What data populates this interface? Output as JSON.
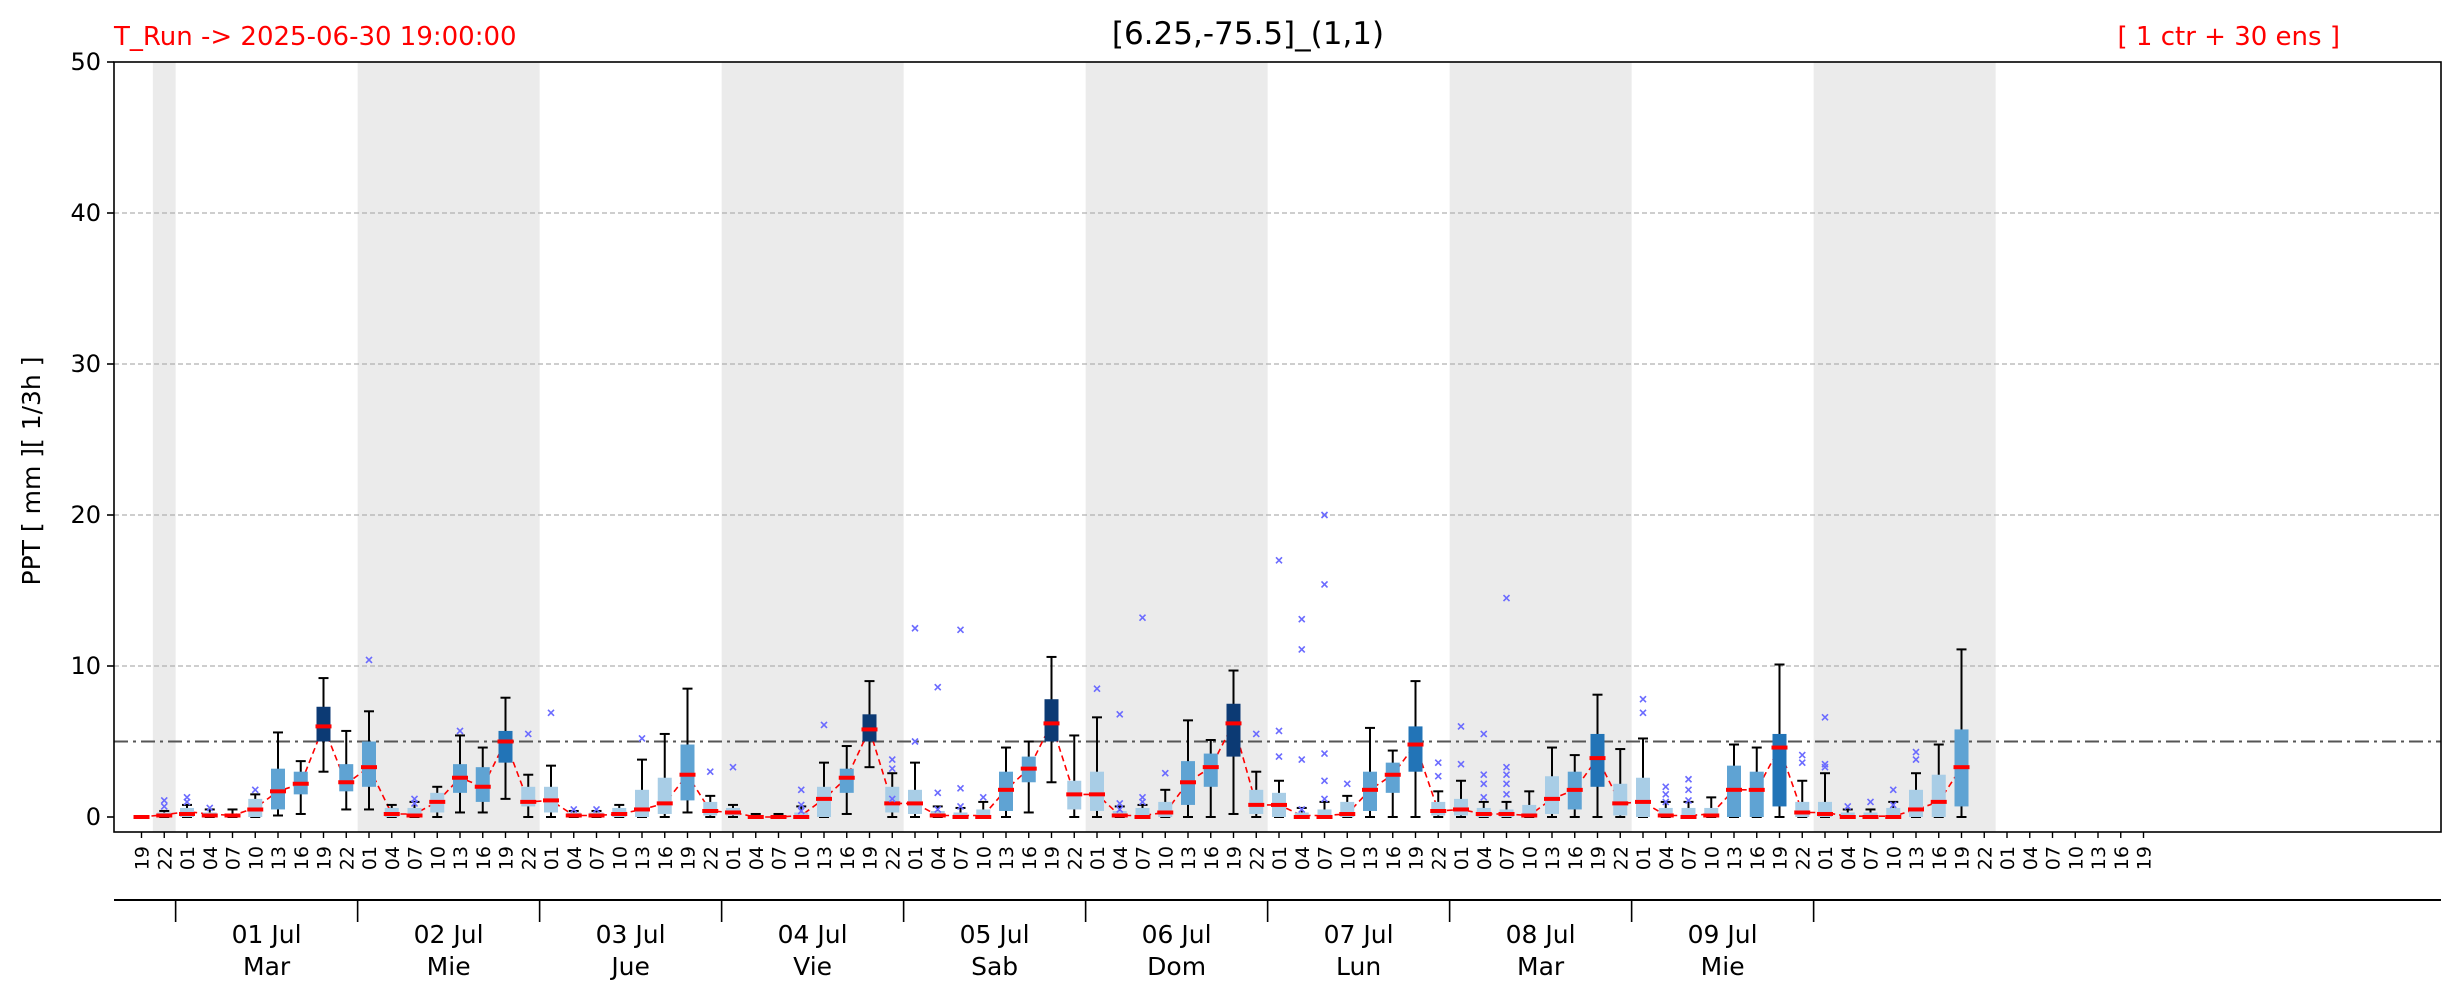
{
  "header": {
    "run_label": "T_Run -> 2025-06-30  19:00:00",
    "title": "[6.25,-75.5]_(1,1)",
    "members_label": "[ 1 ctr + 30 ens ]"
  },
  "colors": {
    "header_text": "#ff0000",
    "median": "#ff0000",
    "mean_line": "#ff0000",
    "outlier": "#6b6bff",
    "night_band": "#ebebeb",
    "box_light": "#a8cde6",
    "box_mid": "#5fa3d3",
    "box_medium_dark": "#2274b7",
    "box_dark": "#0c3a74"
  },
  "chart_data": {
    "type": "box",
    "ylabel": "PPT  [ mm ][ 1/3h ]",
    "ylim": [
      0,
      50
    ],
    "yticks": [
      0,
      10,
      20,
      30,
      40,
      50
    ],
    "grid": true,
    "threshold": 5,
    "x_hour_labels": [
      "19",
      "22",
      "01",
      "04",
      "07",
      "10",
      "13",
      "16",
      "19",
      "22",
      "01",
      "04",
      "07",
      "10",
      "13",
      "16",
      "19",
      "22",
      "01",
      "04",
      "07",
      "10",
      "13",
      "16",
      "19",
      "22",
      "01",
      "04",
      "07",
      "10",
      "13",
      "16",
      "19",
      "22",
      "01",
      "04",
      "07",
      "10",
      "13",
      "16",
      "19",
      "22",
      "01",
      "04",
      "07",
      "10",
      "13",
      "16",
      "19",
      "22",
      "01",
      "04",
      "07",
      "10",
      "13",
      "16",
      "19",
      "22",
      "01",
      "04",
      "07",
      "10",
      "13",
      "16",
      "19",
      "22",
      "01",
      "04",
      "07",
      "10",
      "13",
      "16",
      "19",
      "22",
      "01",
      "04",
      "07",
      "10",
      "13",
      "16",
      "19",
      "22",
      "01",
      "04",
      "07",
      "10",
      "13",
      "16",
      "19"
    ],
    "day_labels": [
      {
        "date": "01 Jul",
        "dow": "Mar",
        "start": 2
      },
      {
        "date": "02 Jul",
        "dow": "Mie",
        "start": 10
      },
      {
        "date": "03 Jul",
        "dow": "Jue",
        "start": 18
      },
      {
        "date": "04 Jul",
        "dow": "Vie",
        "start": 26
      },
      {
        "date": "05 Jul",
        "dow": "Sab",
        "start": 34
      },
      {
        "date": "06 Jul",
        "dow": "Dom",
        "start": 42
      },
      {
        "date": "07 Jul",
        "dow": "Lun",
        "start": 50
      },
      {
        "date": "08 Jul",
        "dow": "Mar",
        "start": 58
      },
      {
        "date": "09 Jul",
        "dow": "Mie",
        "start": 66
      }
    ],
    "night_spans": [
      [
        1,
        2
      ],
      [
        10,
        18
      ],
      [
        26,
        34
      ],
      [
        42,
        50
      ],
      [
        58,
        66
      ],
      [
        74,
        82
      ]
    ],
    "boxes": [
      {
        "q1": 0,
        "q3": 0,
        "low": 0,
        "high": 0,
        "med": 0,
        "mean": 0,
        "out": [],
        "shade": 0
      },
      {
        "q1": 0,
        "q3": 0.3,
        "low": 0,
        "high": 0.4,
        "med": 0.1,
        "mean": 0.15,
        "out": [
          0.7,
          1.1
        ],
        "shade": 0
      },
      {
        "q1": 0,
        "q3": 0.6,
        "low": 0,
        "high": 0.8,
        "med": 0.2,
        "mean": 0.35,
        "out": [
          1.0,
          1.3
        ],
        "shade": 0
      },
      {
        "q1": 0,
        "q3": 0.3,
        "low": 0,
        "high": 0.5,
        "med": 0.1,
        "mean": 0.2,
        "out": [
          0.6
        ],
        "shade": 0
      },
      {
        "q1": 0,
        "q3": 0.2,
        "low": 0,
        "high": 0.5,
        "med": 0.1,
        "mean": 0.1,
        "out": [],
        "shade": 0
      },
      {
        "q1": 0,
        "q3": 1.2,
        "low": 0,
        "high": 1.5,
        "med": 0.5,
        "mean": 0.6,
        "out": [
          1.8
        ],
        "shade": 0
      },
      {
        "q1": 0.5,
        "q3": 3.2,
        "low": 0.1,
        "high": 5.6,
        "med": 1.7,
        "mean": 1.7,
        "out": [],
        "shade": 1
      },
      {
        "q1": 1.5,
        "q3": 3.0,
        "low": 0.2,
        "high": 3.7,
        "med": 2.2,
        "mean": 2.2,
        "out": [],
        "shade": 1
      },
      {
        "q1": 5.0,
        "q3": 7.3,
        "low": 3.0,
        "high": 9.2,
        "med": 6.0,
        "mean": 6.0,
        "out": [],
        "shade": 4
      },
      {
        "q1": 1.7,
        "q3": 3.5,
        "low": 0.5,
        "high": 5.7,
        "med": 2.3,
        "mean": 2.2,
        "out": [],
        "shade": 1
      },
      {
        "q1": 2.0,
        "q3": 5.0,
        "low": 0.5,
        "high": 7.0,
        "med": 3.3,
        "mean": 3.3,
        "out": [
          10.4
        ],
        "shade": 2
      },
      {
        "q1": 0,
        "q3": 0.6,
        "low": 0,
        "high": 0.8,
        "med": 0.2,
        "mean": 0.2,
        "out": [],
        "shade": 0
      },
      {
        "q1": 0,
        "q3": 0.6,
        "low": 0,
        "high": 1.0,
        "med": 0.1,
        "mean": 0.2,
        "out": [
          0.9,
          1.2
        ],
        "shade": 0
      },
      {
        "q1": 0.3,
        "q3": 1.6,
        "low": 0,
        "high": 2.0,
        "med": 1.0,
        "mean": 1.0,
        "out": [],
        "shade": 0
      },
      {
        "q1": 1.6,
        "q3": 3.5,
        "low": 0.3,
        "high": 5.4,
        "med": 2.6,
        "mean": 2.6,
        "out": [
          5.7
        ],
        "shade": 1
      },
      {
        "q1": 1.0,
        "q3": 3.3,
        "low": 0.3,
        "high": 4.6,
        "med": 2.0,
        "mean": 2.0,
        "out": [],
        "shade": 1
      },
      {
        "q1": 3.6,
        "q3": 5.7,
        "low": 1.2,
        "high": 7.9,
        "med": 5.0,
        "mean": 5.0,
        "out": [],
        "shade": 3
      },
      {
        "q1": 0.7,
        "q3": 2.0,
        "low": 0,
        "high": 2.8,
        "med": 1.0,
        "mean": 1.0,
        "out": [
          5.5
        ],
        "shade": 0
      },
      {
        "q1": 0.3,
        "q3": 2.0,
        "low": 0,
        "high": 3.4,
        "med": 1.1,
        "mean": 1.1,
        "out": [
          6.9
        ],
        "shade": 0
      },
      {
        "q1": 0,
        "q3": 0.3,
        "low": 0,
        "high": 0.4,
        "med": 0.1,
        "mean": 0.1,
        "out": [
          0.5
        ],
        "shade": 0
      },
      {
        "q1": 0,
        "q3": 0.3,
        "low": 0,
        "high": 0.4,
        "med": 0.1,
        "mean": 0.1,
        "out": [
          0.5
        ],
        "shade": 0
      },
      {
        "q1": 0,
        "q3": 0.6,
        "low": 0,
        "high": 0.8,
        "med": 0.2,
        "mean": 0.2,
        "out": [],
        "shade": 0
      },
      {
        "q1": 0,
        "q3": 1.8,
        "low": 0,
        "high": 3.8,
        "med": 0.5,
        "mean": 0.5,
        "out": [
          5.2
        ],
        "shade": 0
      },
      {
        "q1": 0.2,
        "q3": 2.6,
        "low": 0,
        "high": 5.5,
        "med": 0.9,
        "mean": 0.9,
        "out": [],
        "shade": 0
      },
      {
        "q1": 1.1,
        "q3": 4.8,
        "low": 0.3,
        "high": 8.5,
        "med": 2.8,
        "mean": 2.8,
        "out": [],
        "shade": 1
      },
      {
        "q1": 0.1,
        "q3": 1.0,
        "low": 0,
        "high": 1.4,
        "med": 0.4,
        "mean": 0.4,
        "out": [
          3.0
        ],
        "shade": 0
      },
      {
        "q1": 0.1,
        "q3": 0.6,
        "low": 0,
        "high": 0.8,
        "med": 0.3,
        "mean": 0.3,
        "out": [
          3.3
        ],
        "shade": 0
      },
      {
        "q1": 0,
        "q3": 0.1,
        "low": 0,
        "high": 0.2,
        "med": 0,
        "mean": 0,
        "out": [],
        "shade": 0
      },
      {
        "q1": 0,
        "q3": 0.1,
        "low": 0,
        "high": 0.2,
        "med": 0,
        "mean": 0,
        "out": [],
        "shade": 0
      },
      {
        "q1": 0,
        "q3": 0.3,
        "low": 0,
        "high": 0.7,
        "med": 0,
        "mean": 0.1,
        "out": [
          0.4,
          0.8,
          1.8
        ],
        "shade": 0
      },
      {
        "q1": 0,
        "q3": 2.0,
        "low": 0,
        "high": 3.6,
        "med": 1.2,
        "mean": 1.2,
        "out": [
          6.1
        ],
        "shade": 0
      },
      {
        "q1": 1.6,
        "q3": 3.2,
        "low": 0.2,
        "high": 4.7,
        "med": 2.6,
        "mean": 2.6,
        "out": [],
        "shade": 1
      },
      {
        "q1": 5.0,
        "q3": 6.8,
        "low": 3.3,
        "high": 9.0,
        "med": 5.8,
        "mean": 5.8,
        "out": [],
        "shade": 4
      },
      {
        "q1": 0.3,
        "q3": 2.0,
        "low": 0,
        "high": 2.9,
        "med": 0.9,
        "mean": 0.9,
        "out": [
          1.2,
          3.2,
          3.8
        ],
        "shade": 0
      },
      {
        "q1": 0.2,
        "q3": 1.8,
        "low": 0,
        "high": 3.6,
        "med": 0.9,
        "mean": 0.9,
        "out": [
          12.5,
          5.0
        ],
        "shade": 0
      },
      {
        "q1": 0,
        "q3": 0.4,
        "low": 0,
        "high": 0.7,
        "med": 0.1,
        "mean": 0.1,
        "out": [
          8.6,
          1.6,
          0.5
        ],
        "shade": 0
      },
      {
        "q1": 0,
        "q3": 0.3,
        "low": 0,
        "high": 0.6,
        "med": 0,
        "mean": 0.1,
        "out": [
          12.4,
          1.9,
          0.7
        ],
        "shade": 0
      },
      {
        "q1": 0,
        "q3": 0.5,
        "low": 0,
        "high": 1.0,
        "med": 0,
        "mean": 0.1,
        "out": [
          1.3
        ],
        "shade": 0
      },
      {
        "q1": 0.4,
        "q3": 3.0,
        "low": 0,
        "high": 4.6,
        "med": 1.8,
        "mean": 1.8,
        "out": [],
        "shade": 1
      },
      {
        "q1": 2.3,
        "q3": 4.0,
        "low": 0.3,
        "high": 5.0,
        "med": 3.2,
        "mean": 3.2,
        "out": [],
        "shade": 2
      },
      {
        "q1": 5.0,
        "q3": 7.8,
        "low": 2.3,
        "high": 10.6,
        "med": 6.2,
        "mean": 6.2,
        "out": [],
        "shade": 4
      },
      {
        "q1": 0.5,
        "q3": 2.4,
        "low": 0,
        "high": 5.4,
        "med": 1.5,
        "mean": 1.5,
        "out": [],
        "shade": 0
      },
      {
        "q1": 0.4,
        "q3": 3.0,
        "low": 0,
        "high": 6.6,
        "med": 1.5,
        "mean": 1.5,
        "out": [
          8.5
        ],
        "shade": 0
      },
      {
        "q1": 0,
        "q3": 0.4,
        "low": 0,
        "high": 0.7,
        "med": 0.1,
        "mean": 0.1,
        "out": [
          6.8,
          0.9,
          0.5
        ],
        "shade": 0
      },
      {
        "q1": 0,
        "q3": 0.6,
        "low": 0,
        "high": 0.8,
        "med": 0,
        "mean": 0.1,
        "out": [
          13.2,
          1.3,
          1.0
        ],
        "shade": 0
      },
      {
        "q1": 0,
        "q3": 1.0,
        "low": 0,
        "high": 1.8,
        "med": 0.3,
        "mean": 0.3,
        "out": [
          2.9
        ],
        "shade": 0
      },
      {
        "q1": 0.8,
        "q3": 3.7,
        "low": 0,
        "high": 6.4,
        "med": 2.3,
        "mean": 2.3,
        "out": [],
        "shade": 1
      },
      {
        "q1": 2.0,
        "q3": 4.2,
        "low": 0,
        "high": 5.1,
        "med": 3.3,
        "mean": 3.3,
        "out": [],
        "shade": 2
      },
      {
        "q1": 4.0,
        "q3": 7.5,
        "low": 0.2,
        "high": 9.7,
        "med": 6.2,
        "mean": 6.2,
        "out": [],
        "shade": 4
      },
      {
        "q1": 0.2,
        "q3": 1.8,
        "low": 0,
        "high": 3.0,
        "med": 0.8,
        "mean": 0.8,
        "out": [
          5.5
        ],
        "shade": 0
      },
      {
        "q1": 0,
        "q3": 1.6,
        "low": 0,
        "high": 2.4,
        "med": 0.8,
        "mean": 0.8,
        "out": [
          17.0,
          5.7,
          4.0
        ],
        "shade": 0
      },
      {
        "q1": 0,
        "q3": 0.3,
        "low": 0,
        "high": 0.6,
        "med": 0,
        "mean": 0.1,
        "out": [
          13.1,
          11.1,
          3.8,
          0.5
        ],
        "shade": 0
      },
      {
        "q1": 0,
        "q3": 0.5,
        "low": 0,
        "high": 1.0,
        "med": 0,
        "mean": 0.1,
        "out": [
          20.0,
          15.4,
          4.2,
          2.4,
          1.2
        ],
        "shade": 0
      },
      {
        "q1": 0,
        "q3": 1.0,
        "low": 0,
        "high": 1.4,
        "med": 0.2,
        "mean": 0.2,
        "out": [
          2.2
        ],
        "shade": 0
      },
      {
        "q1": 0.4,
        "q3": 3.0,
        "low": 0,
        "high": 5.9,
        "med": 1.8,
        "mean": 1.8,
        "out": [],
        "shade": 1
      },
      {
        "q1": 1.6,
        "q3": 3.6,
        "low": 0,
        "high": 4.4,
        "med": 2.8,
        "mean": 2.8,
        "out": [],
        "shade": 2
      },
      {
        "q1": 3.0,
        "q3": 6.0,
        "low": 0,
        "high": 9.0,
        "med": 4.8,
        "mean": 4.8,
        "out": [],
        "shade": 3
      },
      {
        "q1": 0.1,
        "q3": 1.0,
        "low": 0,
        "high": 1.7,
        "med": 0.4,
        "mean": 0.4,
        "out": [
          3.6,
          2.7
        ],
        "shade": 0
      },
      {
        "q1": 0.1,
        "q3": 1.2,
        "low": 0,
        "high": 2.4,
        "med": 0.5,
        "mean": 0.5,
        "out": [
          6.0,
          3.5
        ],
        "shade": 0
      },
      {
        "q1": 0,
        "q3": 0.6,
        "low": 0,
        "high": 1.0,
        "med": 0.2,
        "mean": 0.2,
        "out": [
          5.5,
          2.8,
          2.2,
          1.3
        ],
        "shade": 0
      },
      {
        "q1": 0,
        "q3": 0.5,
        "low": 0,
        "high": 1.0,
        "med": 0.2,
        "mean": 0.2,
        "out": [
          14.5,
          3.3,
          2.8,
          2.2,
          1.5
        ],
        "shade": 0
      },
      {
        "q1": 0,
        "q3": 0.8,
        "low": 0,
        "high": 1.7,
        "med": 0.1,
        "mean": 0.1,
        "out": [],
        "shade": 0
      },
      {
        "q1": 0.2,
        "q3": 2.7,
        "low": 0,
        "high": 4.6,
        "med": 1.2,
        "mean": 1.2,
        "out": [],
        "shade": 0
      },
      {
        "q1": 0.5,
        "q3": 3.0,
        "low": 0,
        "high": 4.1,
        "med": 1.8,
        "mean": 1.8,
        "out": [],
        "shade": 1
      },
      {
        "q1": 2.0,
        "q3": 5.5,
        "low": 0,
        "high": 8.1,
        "med": 3.9,
        "mean": 3.9,
        "out": [],
        "shade": 3
      },
      {
        "q1": 0.1,
        "q3": 2.2,
        "low": 0,
        "high": 4.5,
        "med": 0.9,
        "mean": 0.9,
        "out": [],
        "shade": 0
      },
      {
        "q1": 0,
        "q3": 2.6,
        "low": 0,
        "high": 5.2,
        "med": 1.0,
        "mean": 1.0,
        "out": [
          7.8,
          6.9
        ],
        "shade": 0
      },
      {
        "q1": 0,
        "q3": 0.6,
        "low": 0,
        "high": 1.0,
        "med": 0.1,
        "mean": 0.1,
        "out": [
          2.0,
          1.5,
          1.0
        ],
        "shade": 0
      },
      {
        "q1": 0,
        "q3": 0.6,
        "low": 0,
        "high": 1.0,
        "med": 0,
        "mean": 0.1,
        "out": [
          2.5,
          1.8,
          1.1
        ],
        "shade": 0
      },
      {
        "q1": 0,
        "q3": 0.6,
        "low": 0,
        "high": 1.3,
        "med": 0.1,
        "mean": 0.2,
        "out": [],
        "shade": 0
      },
      {
        "q1": 0,
        "q3": 3.4,
        "low": 0,
        "high": 4.8,
        "med": 1.8,
        "mean": 1.8,
        "out": [],
        "shade": 1
      },
      {
        "q1": 0,
        "q3": 3.0,
        "low": 0,
        "high": 4.6,
        "med": 1.8,
        "mean": 1.8,
        "out": [],
        "shade": 1
      },
      {
        "q1": 0.7,
        "q3": 5.5,
        "low": 0,
        "high": 10.1,
        "med": 4.6,
        "mean": 4.6,
        "out": [],
        "shade": 3
      },
      {
        "q1": 0,
        "q3": 1.0,
        "low": 0,
        "high": 2.4,
        "med": 0.3,
        "mean": 0.3,
        "out": [
          4.1,
          3.6
        ],
        "shade": 0
      },
      {
        "q1": 0,
        "q3": 1.0,
        "low": 0,
        "high": 2.9,
        "med": 0.2,
        "mean": 0.3,
        "out": [
          6.6,
          3.5,
          3.3
        ],
        "shade": 0
      },
      {
        "q1": 0,
        "q3": 0.3,
        "low": 0,
        "high": 0.5,
        "med": 0,
        "mean": 0.05,
        "out": [
          0.7
        ],
        "shade": 0
      },
      {
        "q1": 0,
        "q3": 0.3,
        "low": 0,
        "high": 0.5,
        "med": 0,
        "mean": 0.05,
        "out": [
          1.0
        ],
        "shade": 0
      },
      {
        "q1": 0,
        "q3": 0.6,
        "low": 0,
        "high": 1.0,
        "med": 0,
        "mean": 0.05,
        "out": [
          1.8,
          0.8
        ],
        "shade": 0
      },
      {
        "q1": 0,
        "q3": 1.8,
        "low": 0,
        "high": 2.9,
        "med": 0.5,
        "mean": 0.5,
        "out": [
          4.3,
          3.8
        ],
        "shade": 0
      },
      {
        "q1": 0,
        "q3": 2.8,
        "low": 0,
        "high": 4.8,
        "med": 1.0,
        "mean": 1.0,
        "out": [],
        "shade": 0
      },
      {
        "q1": 0.7,
        "q3": 5.8,
        "low": 0,
        "high": 11.1,
        "med": 3.3,
        "mean": 3.3,
        "out": [],
        "shade": 2
      }
    ]
  }
}
